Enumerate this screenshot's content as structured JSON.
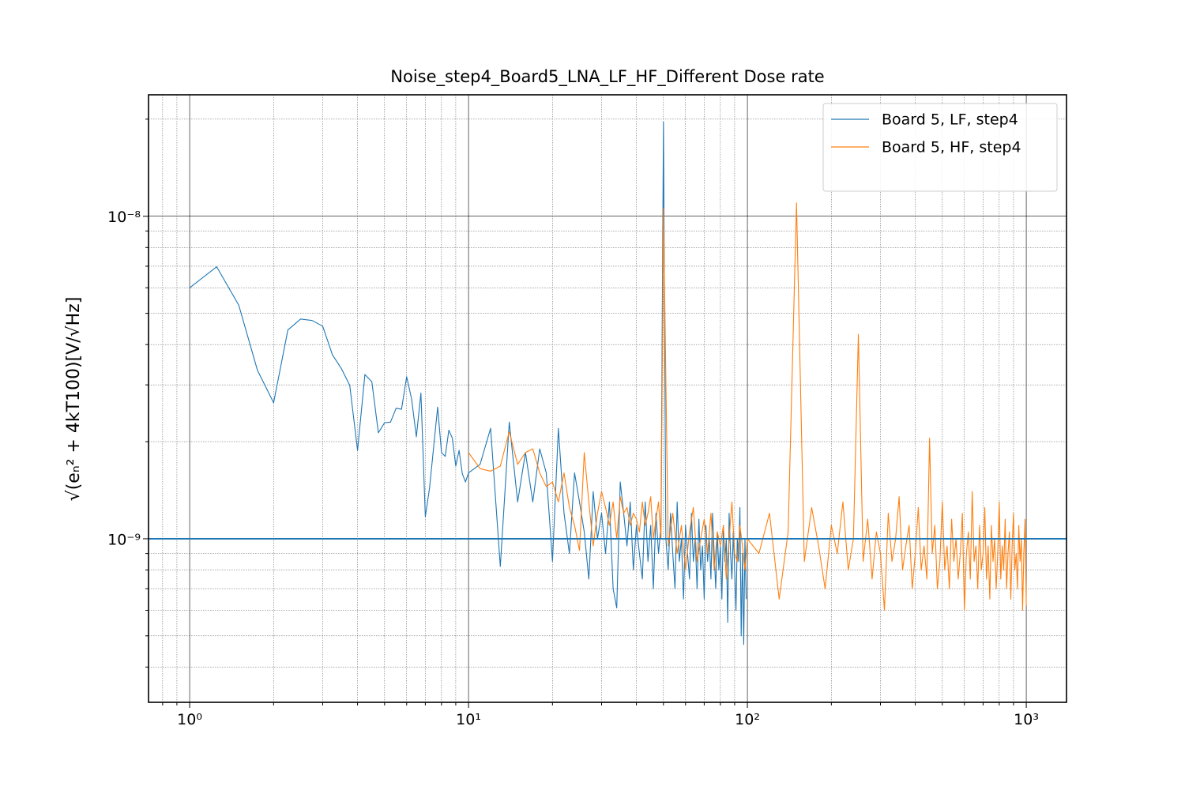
{
  "chart_data": {
    "type": "line",
    "title": "Noise_step4_Board5_LNA_LF_HF_Different Dose rate",
    "ylabel": "√(eₙ² + 4kT100)[V/√Hz]",
    "xscale": "log",
    "yscale": "log",
    "grid": true,
    "legend": "upper right",
    "xlim": [
      0.712,
      1394
    ],
    "ylim": [
      3.11e-10,
      2.38e-08
    ],
    "xticks": [
      {
        "value": 1,
        "label": "10⁰"
      },
      {
        "value": 10,
        "label": "10¹"
      },
      {
        "value": 100,
        "label": "10²"
      },
      {
        "value": 1000,
        "label": "10³"
      }
    ],
    "yticks": [
      {
        "value": 1e-09,
        "label": "10⁻⁹"
      },
      {
        "value": 1e-08,
        "label": "10⁻⁸"
      }
    ],
    "xminorticks": [
      0.8,
      0.9,
      2,
      3,
      4,
      5,
      6,
      7,
      8,
      9,
      20,
      30,
      40,
      50,
      60,
      70,
      80,
      90,
      200,
      300,
      400,
      500,
      600,
      700,
      800,
      900
    ],
    "yminorticks": [
      4e-10,
      5e-10,
      6e-10,
      7e-10,
      8e-10,
      9e-10,
      2e-09,
      3e-09,
      4e-09,
      5e-09,
      6e-09,
      7e-09,
      8e-09,
      9e-09,
      2e-08
    ],
    "hlines": [
      {
        "value": 1e-09,
        "color": "#1f77b4"
      }
    ],
    "series": [
      {
        "name": "Board 5, LF, step4",
        "color": "#1f77b4",
        "x": [
          1,
          1.25,
          1.5,
          1.75,
          2,
          2.25,
          2.5,
          2.75,
          3,
          3.25,
          3.5,
          3.75,
          4,
          4.25,
          4.5,
          4.75,
          5,
          5.25,
          5.5,
          5.75,
          6,
          6.25,
          6.5,
          6.75,
          7,
          7.25,
          7.5,
          7.75,
          8,
          8.25,
          8.5,
          8.75,
          9,
          9.25,
          9.5,
          9.75,
          10,
          11,
          12,
          13,
          14,
          15,
          16,
          17,
          18,
          19,
          20,
          21,
          22,
          23,
          24,
          25,
          26,
          27,
          28,
          29,
          30,
          31,
          32,
          33,
          34,
          35,
          36,
          37,
          38,
          39,
          40,
          41,
          42,
          43,
          44,
          45,
          46,
          47,
          48,
          49,
          50,
          51,
          52,
          53,
          54,
          55,
          56,
          57,
          58,
          59,
          60,
          61,
          62,
          63,
          64,
          65,
          66,
          67,
          68,
          69,
          70,
          71,
          72,
          73,
          74,
          75,
          76,
          77,
          78,
          79,
          80,
          81,
          82,
          83,
          84,
          85,
          86,
          87,
          88,
          89,
          90,
          91,
          92,
          93,
          94,
          95,
          96,
          97,
          98,
          99
        ],
        "values": [
          6e-09,
          6.97e-09,
          5.3e-09,
          3.33e-09,
          2.64e-09,
          4.44e-09,
          4.8e-09,
          4.75e-09,
          4.56e-09,
          3.72e-09,
          3.37e-09,
          2.99e-09,
          1.88e-09,
          3.23e-09,
          3.07e-09,
          2.13e-09,
          2.29e-09,
          2.3e-09,
          2.54e-09,
          2.52e-09,
          3.18e-09,
          2.71e-09,
          2.07e-09,
          2.83e-09,
          1.17e-09,
          1.44e-09,
          1.93e-09,
          2.56e-09,
          1.85e-09,
          1.8e-09,
          2.17e-09,
          2.05e-09,
          1.68e-09,
          1.88e-09,
          1.59e-09,
          1.5e-09,
          1.6e-09,
          1.7e-09,
          2.2e-09,
          8.2e-10,
          2.3e-09,
          1.3e-09,
          1.85e-09,
          1.3e-09,
          1.9e-09,
          1.6e-09,
          8.5e-10,
          2.2e-09,
          1.2e-09,
          9e-10,
          1.6e-09,
          1.3e-09,
          1.05e-09,
          7.5e-10,
          1.4e-09,
          1e-09,
          1.2e-09,
          9e-10,
          1.3e-09,
          7e-10,
          6.1e-10,
          1.5e-09,
          1.2e-09,
          9.5e-10,
          1.3e-09,
          8e-10,
          1.1e-09,
          9e-10,
          7.5e-10,
          1.3e-09,
          8.5e-10,
          1.1e-09,
          7e-10,
          1.2e-09,
          9e-10,
          1.1e-09,
          1.96e-08,
          1e-09,
          8e-10,
          1.2e-09,
          9e-10,
          7e-10,
          1.3e-09,
          8.5e-10,
          1e-09,
          6.5e-10,
          1.1e-09,
          9e-10,
          7.5e-10,
          1.2e-09,
          8.5e-10,
          1e-09,
          7e-10,
          1.15e-09,
          8e-10,
          9.5e-10,
          6.5e-10,
          1.1e-09,
          8.5e-10,
          1e-09,
          7.5e-10,
          1.2e-09,
          9e-10,
          7e-10,
          1.05e-09,
          8e-10,
          9.5e-10,
          6.5e-10,
          1.1e-09,
          8.5e-10,
          1e-09,
          5.5e-10,
          1.2e-09,
          9e-10,
          7.5e-10,
          1.05e-09,
          8e-10,
          6e-10,
          1e-09,
          8.5e-10,
          1.25e-09,
          5e-10,
          9e-10,
          4.7e-10,
          1e-09,
          6.5e-10
        ]
      },
      {
        "name": "Board 5, HF, step4",
        "color": "#ff7f0e",
        "x": [
          10,
          11,
          12,
          13,
          14,
          15,
          16,
          17,
          18,
          19,
          20,
          21,
          22,
          23,
          24,
          25,
          26,
          27,
          28,
          29,
          30,
          31,
          32,
          33,
          34,
          35,
          36,
          37,
          38,
          39,
          40,
          41,
          42,
          43,
          44,
          45,
          46,
          47,
          48,
          49,
          50,
          52,
          54,
          56,
          58,
          60,
          62,
          64,
          66,
          68,
          70,
          72,
          74,
          76,
          78,
          80,
          82,
          84,
          86,
          88,
          90,
          92,
          94,
          96,
          98,
          100,
          110,
          120,
          130,
          140,
          150,
          160,
          170,
          180,
          190,
          200,
          210,
          220,
          230,
          240,
          250,
          260,
          270,
          280,
          290,
          300,
          310,
          320,
          330,
          340,
          350,
          360,
          370,
          380,
          390,
          400,
          410,
          420,
          430,
          440,
          450,
          460,
          470,
          480,
          490,
          500,
          510,
          520,
          530,
          540,
          550,
          560,
          570,
          580,
          590,
          600,
          610,
          620,
          630,
          640,
          650,
          660,
          670,
          680,
          690,
          700,
          710,
          720,
          730,
          740,
          750,
          760,
          770,
          780,
          790,
          800,
          810,
          820,
          830,
          840,
          850,
          860,
          870,
          880,
          890,
          900,
          910,
          920,
          930,
          940,
          950,
          960,
          970,
          980,
          990,
          1000
        ],
        "values": [
          1.85e-09,
          1.65e-09,
          1.62e-09,
          1.68e-09,
          2.15e-09,
          1.7e-09,
          1.85e-09,
          1.9e-09,
          1.6e-09,
          1.45e-09,
          1.5e-09,
          1.3e-09,
          1.6e-09,
          1.25e-09,
          1.1e-09,
          9.2e-10,
          1.85e-09,
          1.3e-09,
          9.5e-10,
          1.2e-09,
          1.4e-09,
          1.25e-09,
          1.1e-09,
          1.3e-09,
          1e-09,
          1.35e-09,
          1.2e-09,
          1.25e-09,
          1.1e-09,
          1.2e-09,
          1.15e-09,
          1.05e-09,
          1.3e-09,
          1.1e-09,
          1.2e-09,
          1.35e-09,
          1e-09,
          1.15e-09,
          1.3e-09,
          1e-09,
          1.06e-08,
          9.5e-10,
          1.2e-09,
          9e-10,
          1.1e-09,
          8e-10,
          1.05e-09,
          1.25e-09,
          8.5e-10,
          1e-09,
          1.15e-09,
          9e-10,
          1.2e-09,
          8e-10,
          1.05e-09,
          9.5e-10,
          1.1e-09,
          7.5e-10,
          1e-09,
          1.3e-09,
          9e-10,
          8.5e-10,
          1.1e-09,
          9.5e-10,
          8e-10,
          1e-09,
          9e-10,
          1.2e-09,
          6.5e-10,
          1.05e-09,
          1.1e-08,
          8.5e-10,
          1.25e-09,
          9.5e-10,
          7e-10,
          1.1e-09,
          9e-10,
          1.3e-09,
          8e-10,
          1e-09,
          4.3e-09,
          8.5e-10,
          1.15e-09,
          7.5e-10,
          1.05e-09,
          9e-10,
          6e-10,
          1.2e-09,
          8.5e-10,
          1e-09,
          1.35e-09,
          8e-10,
          9.5e-10,
          1.1e-09,
          7e-10,
          9e-10,
          1.25e-09,
          8e-10,
          9.5e-10,
          7.5e-10,
          2.05e-09,
          9e-10,
          1.1e-09,
          7e-10,
          8.5e-10,
          1.3e-09,
          8e-10,
          9.5e-10,
          7e-10,
          1.15e-09,
          8.5e-10,
          1e-09,
          7.5e-10,
          9e-10,
          1.2e-09,
          6e-10,
          9e-10,
          1.05e-09,
          7.5e-10,
          1.4e-09,
          8.5e-10,
          9.5e-10,
          7e-10,
          1.1e-09,
          8e-10,
          9e-10,
          1.25e-09,
          7.5e-10,
          9.5e-10,
          6.5e-10,
          1.1e-09,
          8.5e-10,
          1e-09,
          7e-10,
          9e-10,
          1.3e-09,
          7.5e-10,
          9.5e-10,
          8e-10,
          1.15e-09,
          7e-10,
          9e-10,
          1.05e-09,
          6.5e-10,
          9.5e-10,
          1.2e-09,
          8e-10,
          9e-10,
          7e-10,
          1.1e-09,
          8.5e-10,
          1e-09,
          6e-10,
          9e-10,
          1.15e-09,
          6.2e-10
        ]
      }
    ]
  }
}
